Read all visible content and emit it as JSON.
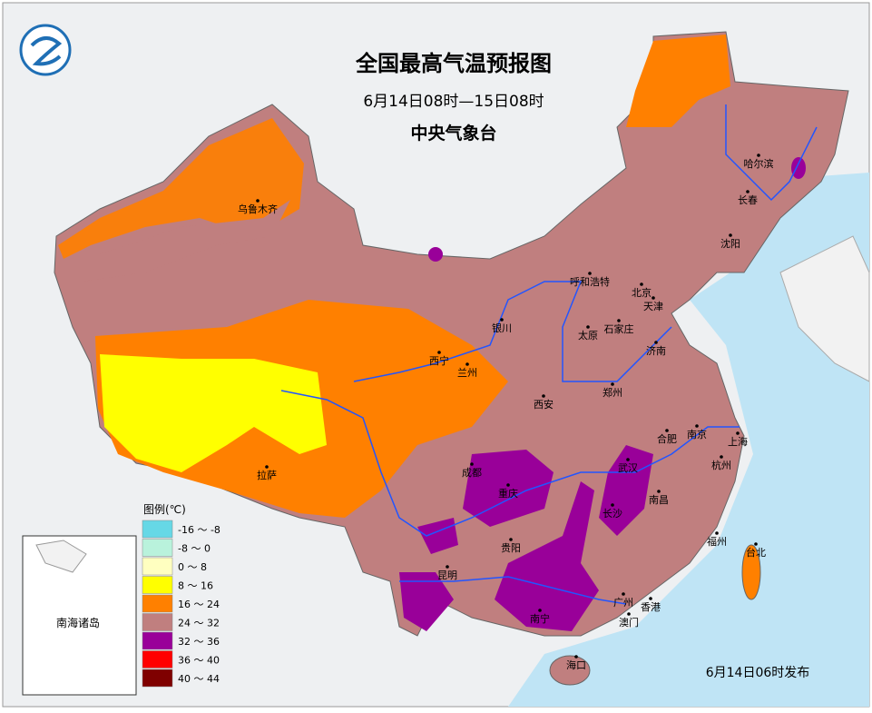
{
  "header": {
    "title": "全国最高气温预报图",
    "subtitle": "6月14日08时—15日08时",
    "issuer": "中央气象台"
  },
  "cities": [
    "乌鲁木齐",
    "哈尔滨",
    "长春",
    "沈阳",
    "呼和浩特",
    "北京",
    "天津",
    "石家庄",
    "太原",
    "济南",
    "银川",
    "西宁",
    "兰州",
    "西安",
    "郑州",
    "合肥",
    "南京",
    "上海",
    "武汉",
    "杭州",
    "成都",
    "重庆",
    "拉萨",
    "长沙",
    "南昌",
    "福州",
    "台北",
    "贵阳",
    "昆明",
    "南宁",
    "广州",
    "香港",
    "澳门",
    "海口"
  ],
  "legend": {
    "title": "图例(℃)",
    "items": [
      {
        "label": "-16 ～ -8",
        "color": "#66d8e6"
      },
      {
        "label": "-8 ～ 0",
        "color": "#b9f2dc"
      },
      {
        "label": "0 ～ 8",
        "color": "#ffffc0"
      },
      {
        "label": "8 ～ 16",
        "color": "#ffff00"
      },
      {
        "label": "16 ～ 24",
        "color": "#ff8000"
      },
      {
        "label": "24 ～ 32",
        "color": "#c07f7f"
      },
      {
        "label": "32 ～ 36",
        "color": "#990099"
      },
      {
        "label": "36 ～ 40",
        "color": "#ff0000"
      },
      {
        "label": "40 ～ 44",
        "color": "#7f0000"
      }
    ]
  },
  "inset_label": "南海诸岛",
  "footer": "6月14日06时发布"
}
